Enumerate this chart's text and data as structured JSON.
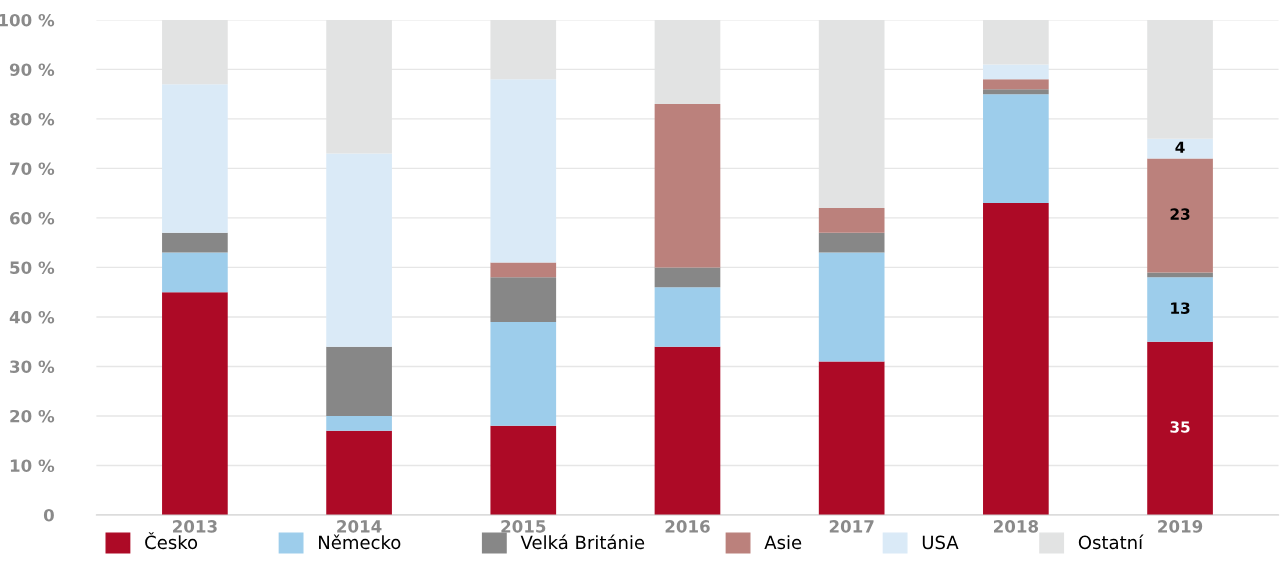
{
  "chart_data": {
    "type": "bar",
    "stacked": true,
    "categories": [
      "2013",
      "2014",
      "2015",
      "2016",
      "2017",
      "2018",
      "2019"
    ],
    "series": [
      {
        "name": "Česko",
        "color": "#ad0a26",
        "values": [
          45,
          17,
          18,
          34,
          31,
          63,
          35
        ],
        "value_labels": [
          null,
          null,
          null,
          null,
          null,
          null,
          "35"
        ]
      },
      {
        "name": "Německo",
        "color": "#9dcdeb",
        "values": [
          8,
          3,
          21,
          12,
          22,
          22,
          13
        ],
        "value_labels": [
          null,
          null,
          null,
          null,
          null,
          null,
          "13"
        ]
      },
      {
        "name": "Velká Británie",
        "color": "#878787",
        "values": [
          4,
          14,
          9,
          4,
          4,
          1,
          1
        ]
      },
      {
        "name": "Asie",
        "color": "#bb817c",
        "values": [
          0,
          0,
          3,
          33,
          5,
          2,
          23
        ],
        "value_labels": [
          null,
          null,
          null,
          null,
          null,
          null,
          "23"
        ]
      },
      {
        "name": "USA",
        "color": "#daeaf7",
        "values": [
          30,
          39,
          37,
          0,
          0,
          3,
          4
        ],
        "value_labels": [
          null,
          null,
          null,
          null,
          null,
          null,
          "4"
        ]
      },
      {
        "name": "Ostatní",
        "color": "#e2e3e3",
        "values": [
          13,
          27,
          12,
          17,
          38,
          9,
          24
        ]
      }
    ],
    "ylim": [
      0,
      100
    ],
    "yticks": [
      {
        "value": 0,
        "label": "0"
      },
      {
        "value": 10,
        "label": "10 %"
      },
      {
        "value": 20,
        "label": "20 %"
      },
      {
        "value": 30,
        "label": "30 %"
      },
      {
        "value": 40,
        "label": "40 %"
      },
      {
        "value": 50,
        "label": "50 %"
      },
      {
        "value": 60,
        "label": "60 %"
      },
      {
        "value": 70,
        "label": "70 %"
      },
      {
        "value": 80,
        "label": "80 %"
      },
      {
        "value": 90,
        "label": "90 %"
      },
      {
        "value": 100,
        "label": "100 %"
      }
    ],
    "grid": "y",
    "legend": "bottom"
  }
}
